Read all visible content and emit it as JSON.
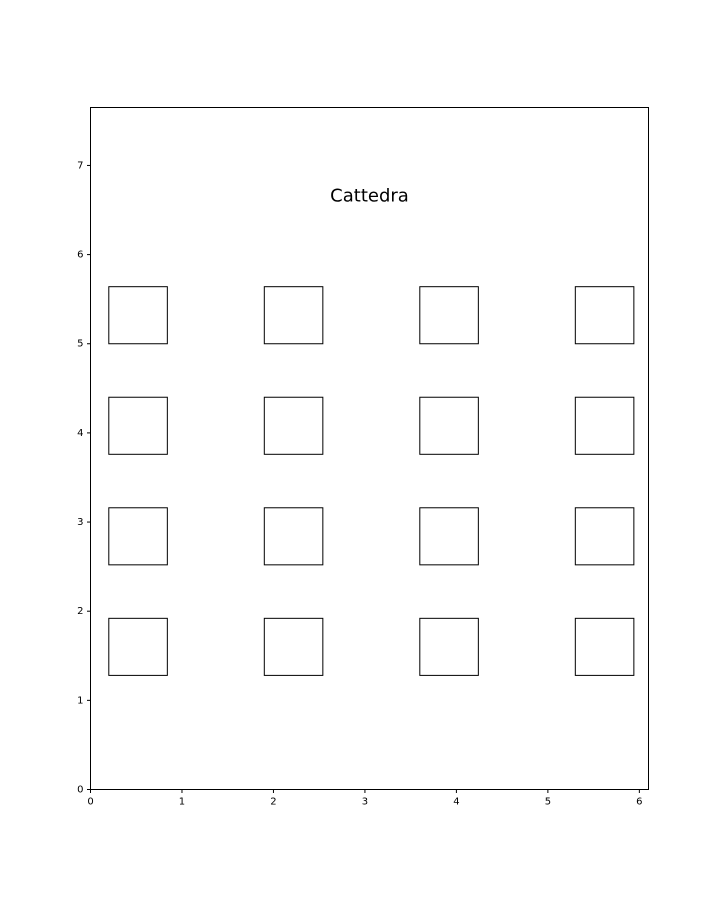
{
  "chart_data": {
    "type": "scatter",
    "title": "",
    "xlabel": "",
    "ylabel": "",
    "xlim": [
      0,
      6.1
    ],
    "ylim": [
      0,
      7.65
    ],
    "x_ticks": [
      0,
      1,
      2,
      3,
      4,
      5,
      6
    ],
    "y_ticks": [
      0,
      1,
      2,
      3,
      4,
      5,
      6,
      7
    ],
    "grid": false,
    "annotation": {
      "text": "Cattedra",
      "x": 3.05,
      "y": 6.65
    },
    "desk_size": {
      "width": 0.64,
      "height": 0.64
    },
    "desks": [
      {
        "row": 1,
        "col": 1,
        "x": 0.2,
        "y": 5.0
      },
      {
        "row": 1,
        "col": 2,
        "x": 1.9,
        "y": 5.0
      },
      {
        "row": 1,
        "col": 3,
        "x": 3.6,
        "y": 5.0
      },
      {
        "row": 1,
        "col": 4,
        "x": 5.3,
        "y": 5.0
      },
      {
        "row": 2,
        "col": 1,
        "x": 0.2,
        "y": 3.76
      },
      {
        "row": 2,
        "col": 2,
        "x": 1.9,
        "y": 3.76
      },
      {
        "row": 2,
        "col": 3,
        "x": 3.6,
        "y": 3.76
      },
      {
        "row": 2,
        "col": 4,
        "x": 5.3,
        "y": 3.76
      },
      {
        "row": 3,
        "col": 1,
        "x": 0.2,
        "y": 2.52
      },
      {
        "row": 3,
        "col": 2,
        "x": 1.9,
        "y": 2.52
      },
      {
        "row": 3,
        "col": 3,
        "x": 3.6,
        "y": 2.52
      },
      {
        "row": 3,
        "col": 4,
        "x": 5.3,
        "y": 2.52
      },
      {
        "row": 4,
        "col": 1,
        "x": 0.2,
        "y": 1.28
      },
      {
        "row": 4,
        "col": 2,
        "x": 1.9,
        "y": 1.28
      },
      {
        "row": 4,
        "col": 3,
        "x": 3.6,
        "y": 1.28
      },
      {
        "row": 4,
        "col": 4,
        "x": 5.3,
        "y": 1.28
      }
    ],
    "colors": {
      "desk_edge": "#000000",
      "desk_fill": "#ffffff",
      "axes": "#000000"
    }
  }
}
